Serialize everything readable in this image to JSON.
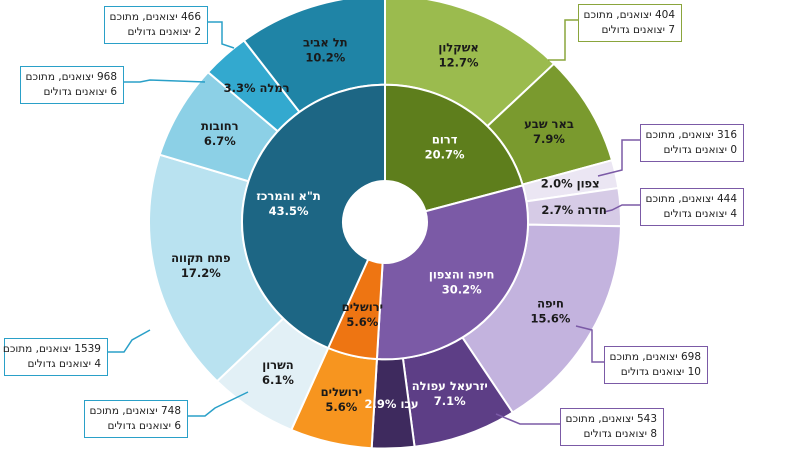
{
  "chart_data": {
    "type": "sunburst",
    "inner": [
      {
        "name": "דרום",
        "pct": "20.7%",
        "value": 20.7,
        "color": "#5e7e1c",
        "text": "#ffffff"
      },
      {
        "name": "חיפה והצפון",
        "pct": "30.2%",
        "value": 30.2,
        "color": "#7b5aa6",
        "text": "#ffffff"
      },
      {
        "name": "ירושלים",
        "pct": "5.6%",
        "value": 5.6,
        "color": "#ee7512",
        "text": "#1a1a1a"
      },
      {
        "name": "ת\"א והמרכז",
        "pct": "43.5%",
        "value": 43.5,
        "color": "#1d6684",
        "text": "#ffffff"
      }
    ],
    "outer": [
      {
        "name": "אשקלון",
        "pct": "12.7%",
        "value": 12.7,
        "color": "#9bbb4e",
        "text": "#1a1a1a"
      },
      {
        "name": "באר שבע",
        "pct": "7.9%",
        "value": 7.9,
        "color": "#7a9a2e",
        "text": "#1a1a1a"
      },
      {
        "name": "צפון",
        "pct": "2.0%",
        "value": 2.0,
        "color": "#ebe6f3",
        "text": "#1a1a1a"
      },
      {
        "name": "חדרה",
        "pct": "2.7%",
        "value": 2.7,
        "color": "#d6cbe6",
        "text": "#1a1a1a"
      },
      {
        "name": "חיפה",
        "pct": "15.6%",
        "value": 15.6,
        "color": "#c3b3de",
        "text": "#1a1a1a"
      },
      {
        "name": "יזרעאל עפולה",
        "pct": "7.1%",
        "value": 7.1,
        "color": "#5d3e86",
        "text": "#ffffff"
      },
      {
        "name": "עכו",
        "pct": "2.9%",
        "value": 2.9,
        "color": "#3e2a5e",
        "text": "#ffffff"
      },
      {
        "name": "ירושלים",
        "pct": "5.6%",
        "value": 5.6,
        "color": "#f7951f",
        "text": "#1a1a1a"
      },
      {
        "name": "השרון",
        "pct": "6.1%",
        "value": 6.1,
        "color": "#e2f0f6",
        "text": "#1a1a1a"
      },
      {
        "name": "פתח תקווה",
        "pct": "17.2%",
        "value": 17.2,
        "color": "#b9e2f0",
        "text": "#1a1a1a"
      },
      {
        "name": "רחובות",
        "pct": "6.7%",
        "value": 6.7,
        "color": "#8cd0e6",
        "text": "#1a1a1a"
      },
      {
        "name": "רמלה",
        "pct": "3.3%",
        "value": 3.3,
        "color": "#33a9cf",
        "text": "#1a1a1a"
      },
      {
        "name": "תל אביב",
        "pct": "10.2%",
        "value": 10.2,
        "color": "#1f84a6",
        "text": "#1a1a1a"
      }
    ],
    "callouts": [
      {
        "segment": "אשקלון",
        "line1": "404 יצואנים, מתוכם",
        "line2": "7 יצואנים גדולים"
      },
      {
        "segment": "צפון",
        "line1": "316 יצואנים, מתוכם",
        "line2": "0 יצואנים גדולים"
      },
      {
        "segment": "חדרה",
        "line1": "444 יצואנים, מתוכם",
        "line2": "4 יצואנים גדולים"
      },
      {
        "segment": "חיפה",
        "line1": "698 יצואנים, מתוכם",
        "line2": "10 יצואנים גדולים"
      },
      {
        "segment": "יזרעאל עפולה",
        "line1": "543 יצואנים, מתוכם",
        "line2": "8 יצואנים גדולים"
      },
      {
        "segment": "תל אביב",
        "line1": "466 יצואנים, מתוכם",
        "line2": "2 יצואנים גדולים"
      },
      {
        "segment": "רמלה",
        "line1": "968 יצואנים, מתוכם",
        "line2": "6 יצואנים גדולים"
      },
      {
        "segment": "פתח תקווה",
        "line1": "1539 יצואנים, מתוכם",
        "line2": "4 יצואנים גדולים"
      },
      {
        "segment": "השרון",
        "line1": "748 יצואנים, מתוכם",
        "line2": "6 יצואנים גדולים"
      }
    ]
  }
}
